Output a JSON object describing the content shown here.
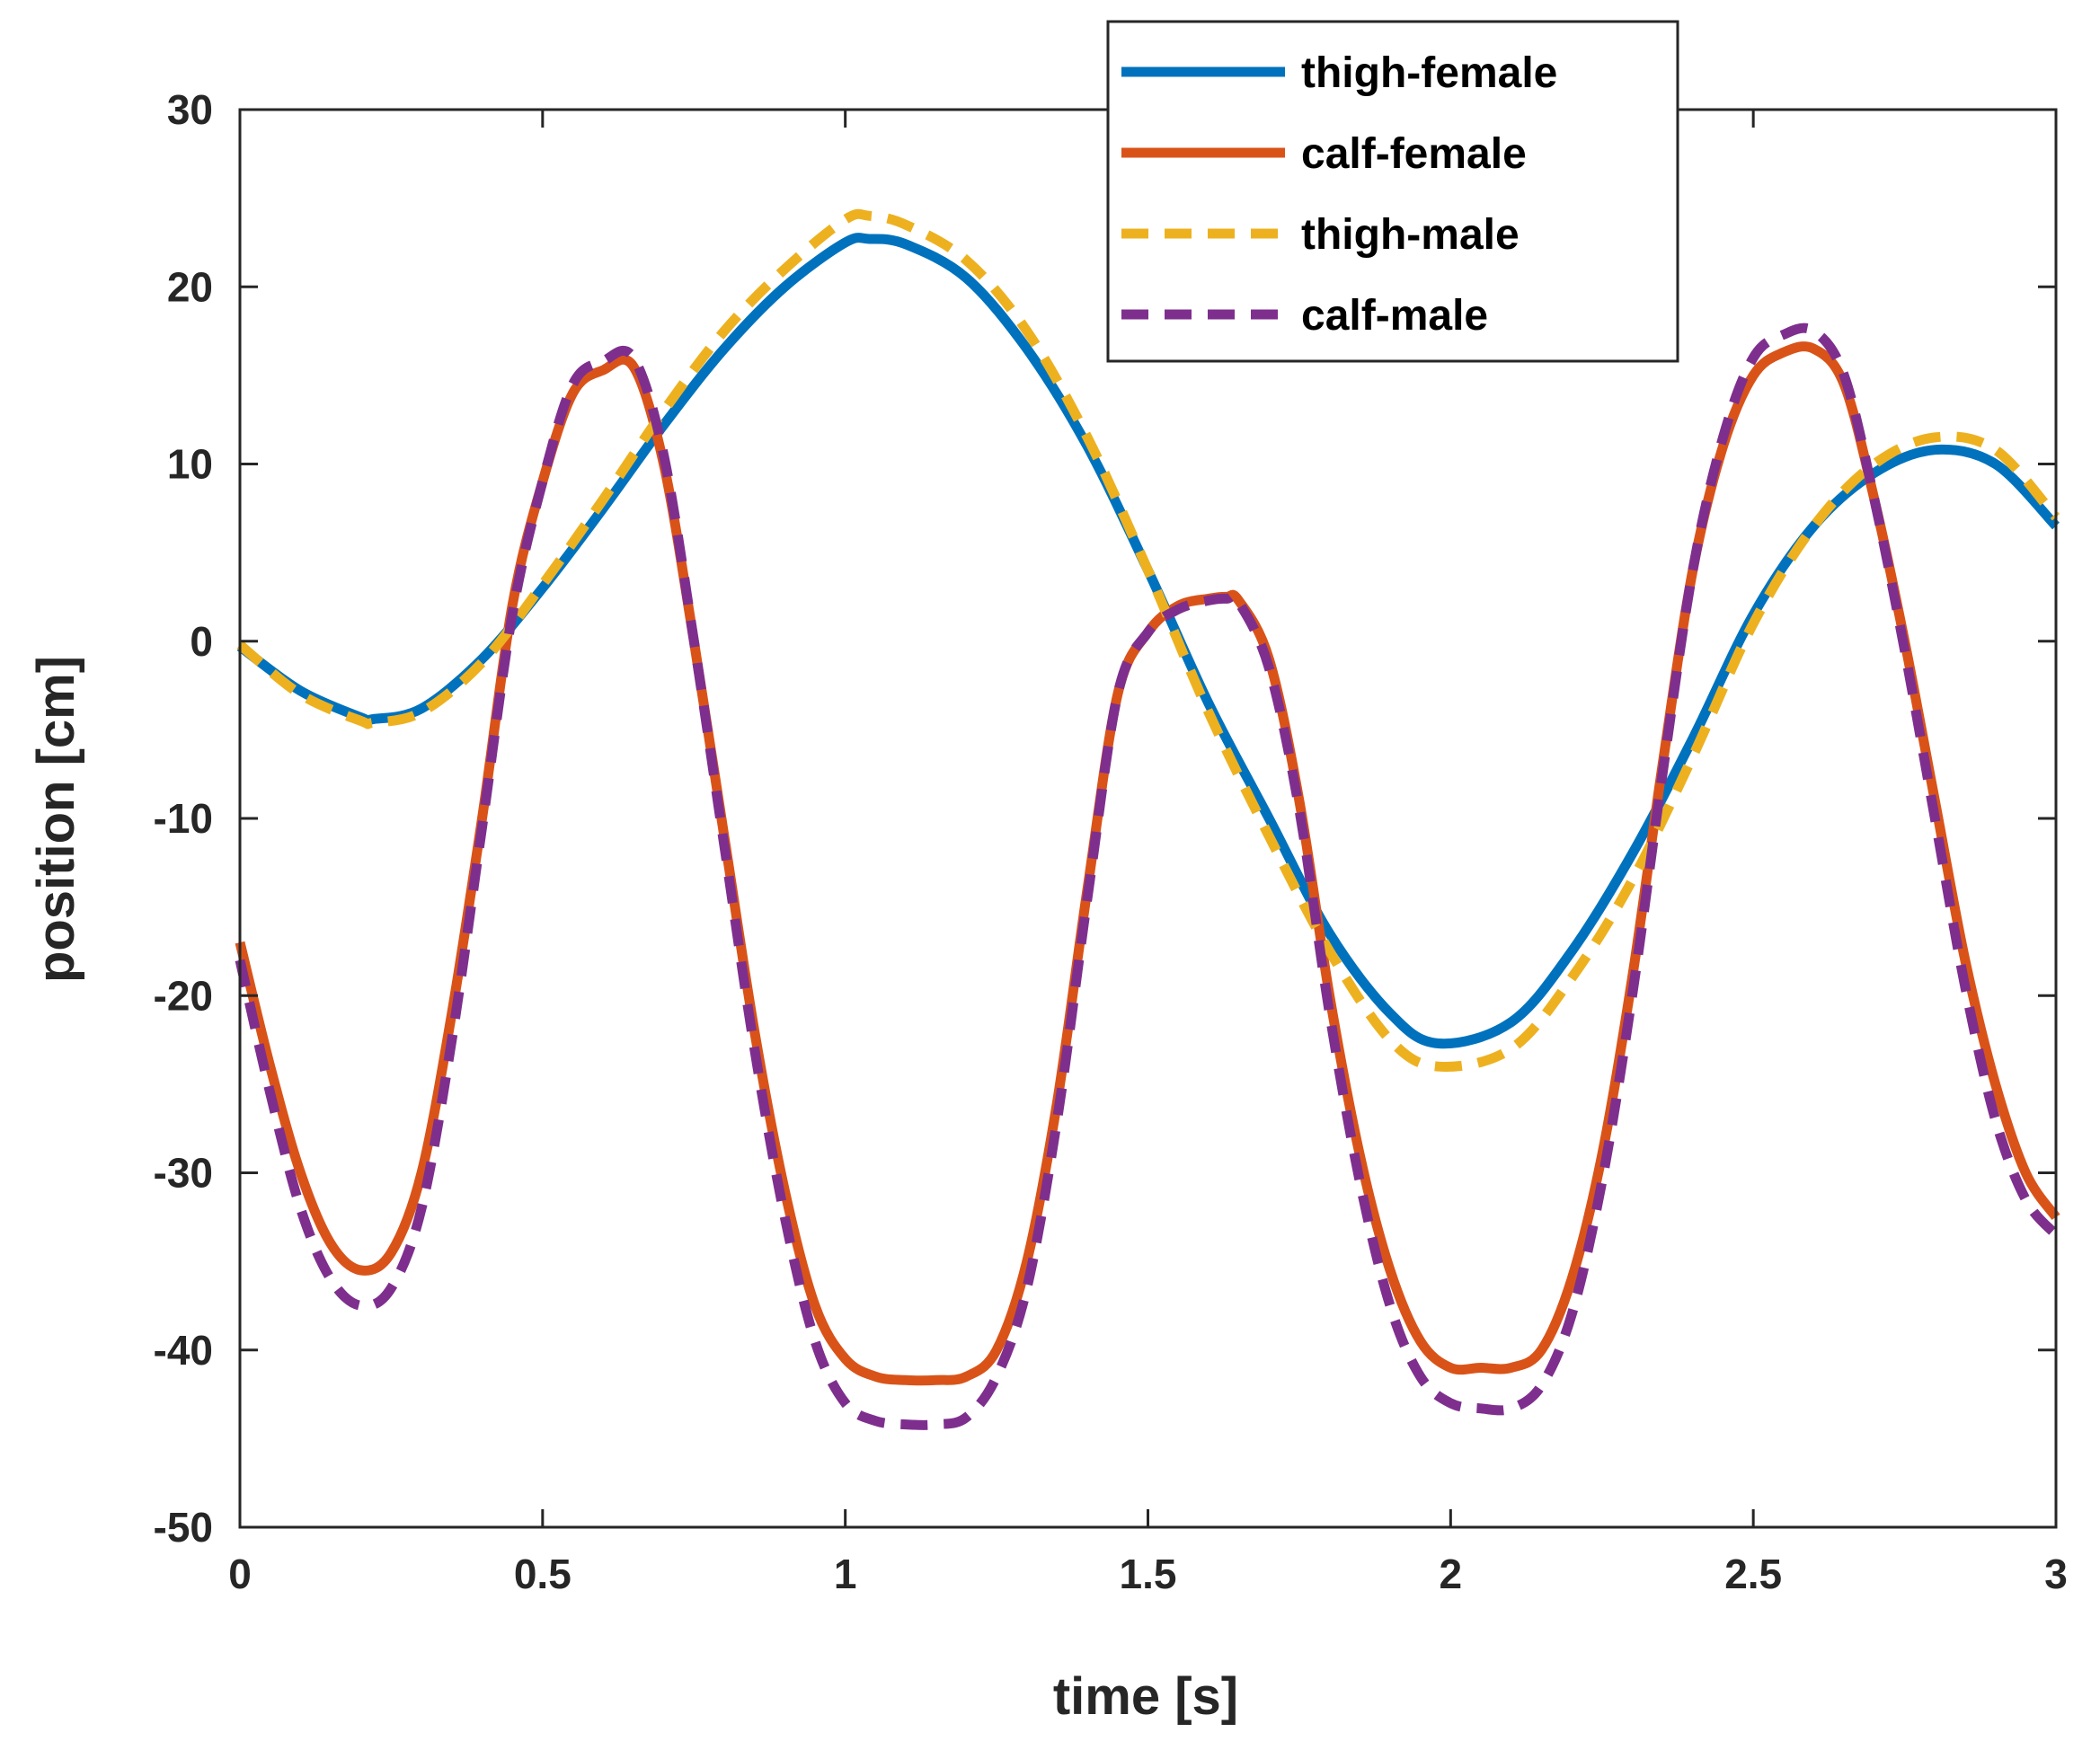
{
  "chart_data": {
    "type": "line",
    "title": "",
    "xlabel": "time [s]",
    "ylabel": "position [cm]",
    "xlim": [
      0,
      3
    ],
    "ylim": [
      -50,
      30
    ],
    "xticks": [
      0,
      0.5,
      1,
      1.5,
      2,
      2.5,
      3
    ],
    "xtick_labels": [
      "0",
      "0.5",
      "1",
      "1.5",
      "2",
      "2.5",
      "3"
    ],
    "yticks": [
      -50,
      -40,
      -30,
      -20,
      -10,
      0,
      10,
      20,
      30
    ],
    "ytick_labels": [
      "-50",
      "-40",
      "-30",
      "-20",
      "-10",
      "0",
      "10",
      "20",
      "30"
    ],
    "grid": false,
    "legend_position": "top-right",
    "series": [
      {
        "name": "thigh-female",
        "color": "#0072BD",
        "style": "solid",
        "x": [
          0,
          0.1,
          0.2,
          0.22,
          0.3,
          0.4,
          0.5,
          0.6,
          0.7,
          0.8,
          0.9,
          1.0,
          1.04,
          1.1,
          1.2,
          1.3,
          1.4,
          1.5,
          1.6,
          1.7,
          1.8,
          1.9,
          1.98,
          2.1,
          2.2,
          2.3,
          2.4,
          2.5,
          2.6,
          2.7,
          2.8,
          2.9,
          3.0
        ],
        "y": [
          -0.3,
          -2.8,
          -4.3,
          -4.4,
          -3.8,
          -1.0,
          3.0,
          7.5,
          12.2,
          16.5,
          20.0,
          22.5,
          22.7,
          22.4,
          20.5,
          16.5,
          11.0,
          4.0,
          -3.5,
          -10.0,
          -16.5,
          -21.0,
          -22.7,
          -21.5,
          -17.5,
          -12.0,
          -5.5,
          1.5,
          6.5,
          9.5,
          10.8,
          10.0,
          6.5
        ]
      },
      {
        "name": "calf-female",
        "color": "#D95319",
        "style": "solid",
        "x": [
          0,
          0.05,
          0.1,
          0.15,
          0.2,
          0.25,
          0.3,
          0.35,
          0.4,
          0.45,
          0.5,
          0.55,
          0.6,
          0.65,
          0.7,
          0.75,
          0.8,
          0.85,
          0.9,
          0.95,
          1.0,
          1.05,
          1.1,
          1.15,
          1.2,
          1.25,
          1.3,
          1.35,
          1.4,
          1.45,
          1.5,
          1.55,
          1.6,
          1.63,
          1.65,
          1.7,
          1.75,
          1.8,
          1.85,
          1.9,
          1.95,
          2.0,
          2.05,
          2.1,
          2.15,
          2.2,
          2.25,
          2.3,
          2.35,
          2.4,
          2.45,
          2.5,
          2.55,
          2.6,
          2.65,
          2.7,
          2.75,
          2.8,
          2.85,
          2.9,
          2.95,
          3.0
        ],
        "y": [
          -17,
          -24,
          -30,
          -34,
          -35.5,
          -34.5,
          -30,
          -21,
          -10,
          2,
          9,
          14,
          15.3,
          15.5,
          10,
          0,
          -11,
          -22,
          -31,
          -37.5,
          -40.5,
          -41.5,
          -41.7,
          -41.7,
          -41.5,
          -40,
          -35,
          -26,
          -14,
          -3,
          0.5,
          2,
          2.4,
          2.5,
          2.3,
          -1,
          -9,
          -20,
          -29,
          -35.5,
          -39.5,
          -41,
          -41,
          -41,
          -40,
          -36,
          -29,
          -19,
          -7,
          4,
          11,
          15,
          16.3,
          16.5,
          14.5,
          8,
          0,
          -9,
          -18,
          -25,
          -30,
          -32.5
        ]
      },
      {
        "name": "thigh-male",
        "color": "#EDB120",
        "style": "dashed",
        "x": [
          0,
          0.1,
          0.2,
          0.22,
          0.3,
          0.4,
          0.5,
          0.6,
          0.7,
          0.8,
          0.9,
          1.0,
          1.04,
          1.1,
          1.2,
          1.3,
          1.4,
          1.5,
          1.6,
          1.7,
          1.8,
          1.9,
          1.98,
          2.1,
          2.2,
          2.3,
          2.4,
          2.5,
          2.6,
          2.7,
          2.8,
          2.9,
          3.0
        ],
        "y": [
          -0.2,
          -3.0,
          -4.5,
          -4.6,
          -4.0,
          -1.2,
          3.2,
          8.0,
          13.0,
          17.5,
          21.0,
          23.8,
          24.0,
          23.5,
          21.5,
          17.5,
          11.5,
          4.0,
          -4.0,
          -11.0,
          -17.5,
          -22.5,
          -24.0,
          -23.0,
          -19.0,
          -13.5,
          -6.5,
          1.0,
          6.5,
          10.0,
          11.5,
          10.8,
          7.0
        ]
      },
      {
        "name": "calf-male",
        "color": "#7E2F8E",
        "style": "dashed",
        "x": [
          0,
          0.05,
          0.1,
          0.15,
          0.2,
          0.25,
          0.3,
          0.35,
          0.4,
          0.45,
          0.5,
          0.55,
          0.6,
          0.65,
          0.7,
          0.75,
          0.8,
          0.85,
          0.9,
          0.95,
          1.0,
          1.05,
          1.1,
          1.15,
          1.2,
          1.25,
          1.3,
          1.35,
          1.4,
          1.45,
          1.5,
          1.55,
          1.6,
          1.63,
          1.65,
          1.7,
          1.75,
          1.8,
          1.85,
          1.9,
          1.95,
          2.0,
          2.05,
          2.1,
          2.15,
          2.2,
          2.25,
          2.3,
          2.35,
          2.4,
          2.45,
          2.5,
          2.55,
          2.6,
          2.65,
          2.7,
          2.75,
          2.8,
          2.85,
          2.9,
          2.95,
          3.0
        ],
        "y": [
          -18,
          -25.5,
          -32,
          -36,
          -37.5,
          -36.5,
          -32,
          -22.5,
          -10.5,
          1.5,
          9,
          14.5,
          15.8,
          16.0,
          10.5,
          0,
          -11.5,
          -23,
          -32.5,
          -39.5,
          -43,
          -44,
          -44.2,
          -44.2,
          -43.8,
          -41.5,
          -36.5,
          -27,
          -14.5,
          -3,
          0.5,
          1.8,
          2.3,
          2.4,
          2.2,
          -1.5,
          -9.5,
          -21,
          -30.5,
          -37.5,
          -41.5,
          -43,
          -43.3,
          -43.3,
          -42,
          -38,
          -30.5,
          -20,
          -7.5,
          4,
          11.5,
          16,
          17.3,
          17.5,
          15,
          8,
          -0.5,
          -10,
          -19.5,
          -27,
          -31.5,
          -33.5
        ]
      }
    ]
  }
}
